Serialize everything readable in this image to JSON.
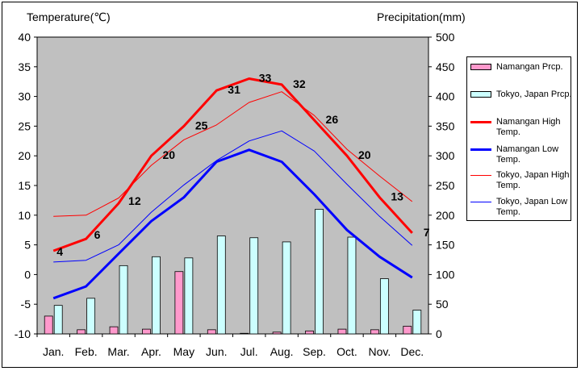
{
  "chart_data": {
    "type": "bar+line",
    "title": "",
    "ylabel_left": "Temperature(℃)",
    "ylabel_right": "Precipitation(mm)",
    "categories": [
      "Jan.",
      "Feb.",
      "Mar.",
      "Apr.",
      "May",
      "Jun.",
      "Jul.",
      "Aug.",
      "Sep.",
      "Oct.",
      "Nov.",
      "Dec."
    ],
    "ylim_left": [
      -10,
      40
    ],
    "yticks_left": [
      "40",
      "35",
      "30",
      "25",
      "20",
      "15",
      "10",
      "5",
      "0",
      "-5",
      "-10"
    ],
    "ylim_right": [
      0,
      500
    ],
    "yticks_right": [
      "500",
      "450",
      "400",
      "350",
      "300",
      "250",
      "200",
      "150",
      "100",
      "50",
      "0"
    ],
    "grid": false,
    "legend_position": "right",
    "series": [
      {
        "name": "Namangan Prcp.",
        "kind": "bar",
        "axis": "right",
        "color": "#ff99cc",
        "values": [
          30,
          7,
          12,
          8,
          105,
          7,
          1,
          3,
          5,
          8,
          7,
          13
        ]
      },
      {
        "name": "Tokyo, Japan Prcp.",
        "kind": "bar",
        "axis": "right",
        "color": "#ccffff",
        "values": [
          48,
          60,
          115,
          130,
          128,
          165,
          162,
          155,
          210,
          163,
          93,
          40
        ]
      },
      {
        "name": "Namangan High Temp.",
        "kind": "line",
        "axis": "left",
        "color": "#ff0000",
        "width": 3,
        "values": [
          4,
          6,
          12,
          20,
          25,
          31,
          33,
          32,
          26,
          20,
          13,
          7
        ],
        "labels": [
          "4",
          "6",
          "12",
          "20",
          "25",
          "31",
          "33",
          "32",
          "26",
          "20",
          "13",
          "7"
        ]
      },
      {
        "name": "Namangan Low Temp.",
        "kind": "line",
        "axis": "left",
        "color": "#0000ff",
        "width": 3,
        "values": [
          -4,
          -2,
          3.5,
          9,
          13,
          19,
          21,
          19,
          13.5,
          7.5,
          3,
          -0.5
        ]
      },
      {
        "name": "Tokyo, Japan High Temp.",
        "kind": "line",
        "axis": "left",
        "color": "#ff0000",
        "width": 1,
        "values": [
          9.8,
          10,
          12.9,
          18.4,
          22.7,
          25.2,
          29,
          30.8,
          26.8,
          21.1,
          16.6,
          12.3
        ]
      },
      {
        "name": "Tokyo, Japan Low Temp.",
        "kind": "line",
        "axis": "left",
        "color": "#0000ff",
        "width": 1,
        "values": [
          2.1,
          2.4,
          5,
          10.5,
          15.1,
          19.2,
          22.5,
          24.2,
          20.8,
          15.2,
          9.8,
          4.9
        ]
      }
    ],
    "colors": {
      "plot_background": "#c0c0c0",
      "bar_stroke": "#000000"
    },
    "legend": [
      {
        "label": "Namangan Prcp.",
        "swatch": "bar",
        "color": "#ff99cc"
      },
      {
        "label": "Tokyo, Japan Prcp.",
        "swatch": "bar",
        "color": "#ccffff"
      },
      {
        "label": "Namangan High Temp.",
        "swatch": "thick-line",
        "color": "#ff0000"
      },
      {
        "label": "Namangan Low Temp.",
        "swatch": "thick-line",
        "color": "#0000ff"
      },
      {
        "label": "Tokyo, Japan High Temp.",
        "swatch": "thin-line",
        "color": "#ff0000"
      },
      {
        "label": "Tokyo, Japan Low Temp.",
        "swatch": "thin-line",
        "color": "#0000ff"
      }
    ]
  }
}
